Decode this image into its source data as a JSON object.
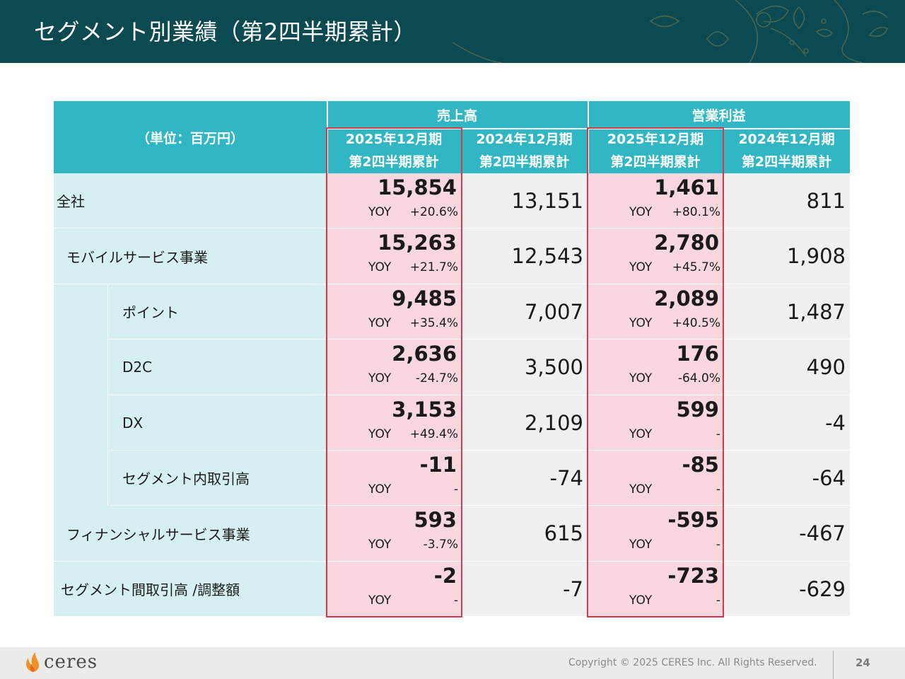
{
  "header": {
    "title": "セグメント別業績（第2四半期累計）"
  },
  "table": {
    "unit": "（単位：百万円）",
    "groups": {
      "sales": "売上高",
      "op": "営業利益"
    },
    "periods": {
      "cur_line1": "2025年12月期",
      "cur_line2": "第2四半期累計",
      "prev_line1": "2024年12月期",
      "prev_line2": "第2四半期累計"
    },
    "yoy_label": "YOY",
    "rows": [
      {
        "label": "全社",
        "sales_cur": "15,854",
        "sales_yoy": "+20.6%",
        "sales_prev": "13,151",
        "op_cur": "1,461",
        "op_yoy": "+80.1%",
        "op_prev": "811"
      },
      {
        "label": "モバイルサービス事業",
        "sales_cur": "15,263",
        "sales_yoy": "+21.7%",
        "sales_prev": "12,543",
        "op_cur": "2,780",
        "op_yoy": "+45.7%",
        "op_prev": "1,908"
      },
      {
        "label": "ポイント",
        "sales_cur": "9,485",
        "sales_yoy": "+35.4%",
        "sales_prev": "7,007",
        "op_cur": "2,089",
        "op_yoy": "+40.5%",
        "op_prev": "1,487"
      },
      {
        "label": "D2C",
        "sales_cur": "2,636",
        "sales_yoy": "-24.7%",
        "sales_prev": "3,500",
        "op_cur": "176",
        "op_yoy": "-64.0%",
        "op_prev": "490"
      },
      {
        "label": "DX",
        "sales_cur": "3,153",
        "sales_yoy": "+49.4%",
        "sales_prev": "2,109",
        "op_cur": "599",
        "op_yoy": "-",
        "op_prev": "-4"
      },
      {
        "label": "セグメント内取引高",
        "sales_cur": "-11",
        "sales_yoy": "-",
        "sales_prev": "-74",
        "op_cur": "-85",
        "op_yoy": "-",
        "op_prev": "-64"
      },
      {
        "label": "フィナンシャルサービス事業",
        "sales_cur": "593",
        "sales_yoy": "-3.7%",
        "sales_prev": "615",
        "op_cur": "-595",
        "op_yoy": "-",
        "op_prev": "-467"
      },
      {
        "label": "セグメント間取引高 /調整額",
        "sales_cur": "-2",
        "sales_yoy": "-",
        "sales_prev": "-7",
        "op_cur": "-723",
        "op_yoy": "-",
        "op_prev": "-629"
      }
    ]
  },
  "footer": {
    "logo_text": "ceres",
    "copyright": "Copyright © 2025 CERES Inc. All Rights Reserved.",
    "page_number": "24"
  }
}
